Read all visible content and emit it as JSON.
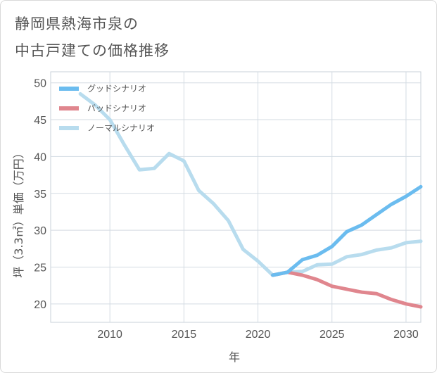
{
  "title": {
    "line1": "静岡県熱海市泉の",
    "line2": "中古戸建ての価格推移"
  },
  "chart_data": {
    "type": "line",
    "xlabel": "年",
    "ylabel": "坪（3.3㎡）単価（万円）",
    "xlim": [
      2006,
      2031
    ],
    "ylim": [
      17.5,
      51.5
    ],
    "xticks": [
      2010,
      2015,
      2020,
      2025,
      2030
    ],
    "yticks": [
      20,
      25,
      30,
      35,
      40,
      45,
      50
    ],
    "grid": true,
    "legend_position": "top-left",
    "series": [
      {
        "name": "グッドシナリオ",
        "color": "#6bbcef",
        "points": [
          [
            2021,
            23.9
          ],
          [
            2022,
            24.3
          ],
          [
            2023,
            26.0
          ],
          [
            2024,
            26.6
          ],
          [
            2025,
            27.8
          ],
          [
            2026,
            29.8
          ],
          [
            2027,
            30.7
          ],
          [
            2028,
            32.1
          ],
          [
            2029,
            33.5
          ],
          [
            2030,
            34.6
          ],
          [
            2031,
            35.9
          ]
        ]
      },
      {
        "name": "バッドシナリオ",
        "color": "#e0868e",
        "points": [
          [
            2021,
            23.9
          ],
          [
            2022,
            24.3
          ],
          [
            2023,
            23.9
          ],
          [
            2024,
            23.3
          ],
          [
            2025,
            22.4
          ],
          [
            2026,
            22.0
          ],
          [
            2027,
            21.6
          ],
          [
            2028,
            21.4
          ],
          [
            2029,
            20.6
          ],
          [
            2030,
            20.0
          ],
          [
            2031,
            19.6
          ]
        ]
      },
      {
        "name": "ノーマルシナリオ",
        "color": "#b8dcee",
        "points": [
          [
            2008,
            48.5
          ],
          [
            2009,
            47.0
          ],
          [
            2010,
            45.0
          ],
          [
            2011,
            41.5
          ],
          [
            2012,
            38.2
          ],
          [
            2013,
            38.4
          ],
          [
            2014,
            40.4
          ],
          [
            2015,
            39.4
          ],
          [
            2016,
            35.4
          ],
          [
            2017,
            33.6
          ],
          [
            2018,
            31.3
          ],
          [
            2019,
            27.4
          ],
          [
            2020,
            25.8
          ],
          [
            2021,
            23.9
          ],
          [
            2022,
            24.3
          ],
          [
            2023,
            24.4
          ],
          [
            2024,
            25.3
          ],
          [
            2025,
            25.4
          ],
          [
            2026,
            26.4
          ],
          [
            2027,
            26.7
          ],
          [
            2028,
            27.3
          ],
          [
            2029,
            27.6
          ],
          [
            2030,
            28.3
          ],
          [
            2031,
            28.5
          ]
        ]
      }
    ]
  }
}
